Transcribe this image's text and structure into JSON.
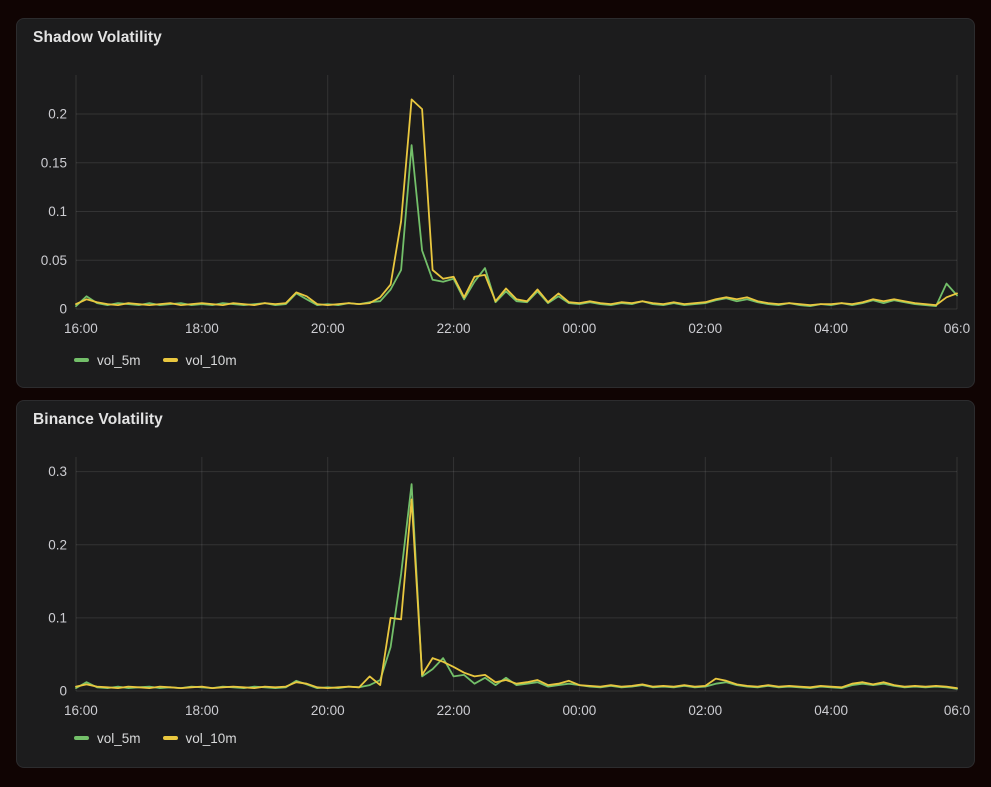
{
  "colors": {
    "page_background": "#100403",
    "panel_background": "#1c1c1d",
    "panel_border": "#2c2c2e",
    "grid": "rgba(255,255,255,0.10)",
    "title_text": "#e3e3e3",
    "axis_text": "#cdcdd2",
    "legend_text": "#d8d9da",
    "series_green": "#73bf69",
    "series_yellow": "#e9c73f"
  },
  "chart_data": [
    {
      "type": "line",
      "title": "Shadow Volatility",
      "xlabel": "",
      "ylabel": "",
      "grid": true,
      "legend_position": "bottom-left",
      "x_tick_labels": [
        "16:00",
        "18:00",
        "20:00",
        "22:00",
        "00:00",
        "02:00",
        "04:00",
        "06:0"
      ],
      "x_interval_minutes": 10,
      "x_span_minutes": 840,
      "ylim": [
        0,
        0.24
      ],
      "y_ticks": [
        {
          "v": 0,
          "label": "0"
        },
        {
          "v": 0.05,
          "label": "0.05"
        },
        {
          "v": 0.1,
          "label": "0.1"
        },
        {
          "v": 0.15,
          "label": "0.15"
        },
        {
          "v": 0.2,
          "label": "0.2"
        }
      ],
      "series": [
        {
          "name": "vol_5m",
          "color_key": "series_green",
          "values": [
            0.003,
            0.013,
            0.006,
            0.004,
            0.006,
            0.005,
            0.004,
            0.006,
            0.004,
            0.005,
            0.006,
            0.004,
            0.005,
            0.004,
            0.006,
            0.005,
            0.004,
            0.005,
            0.006,
            0.004,
            0.005,
            0.016,
            0.01,
            0.004,
            0.005,
            0.004,
            0.006,
            0.005,
            0.007,
            0.008,
            0.02,
            0.04,
            0.168,
            0.06,
            0.03,
            0.028,
            0.031,
            0.01,
            0.028,
            0.042,
            0.007,
            0.018,
            0.008,
            0.007,
            0.018,
            0.006,
            0.013,
            0.006,
            0.005,
            0.007,
            0.005,
            0.004,
            0.006,
            0.005,
            0.008,
            0.005,
            0.004,
            0.006,
            0.004,
            0.005,
            0.006,
            0.009,
            0.011,
            0.008,
            0.01,
            0.007,
            0.005,
            0.004,
            0.006,
            0.004,
            0.003,
            0.005,
            0.004,
            0.006,
            0.004,
            0.006,
            0.009,
            0.006,
            0.009,
            0.007,
            0.005,
            0.004,
            0.003,
            0.026,
            0.014
          ]
        },
        {
          "name": "vol_10m",
          "color_key": "series_yellow",
          "values": [
            0.005,
            0.01,
            0.007,
            0.005,
            0.004,
            0.006,
            0.005,
            0.004,
            0.005,
            0.006,
            0.004,
            0.005,
            0.006,
            0.005,
            0.004,
            0.006,
            0.005,
            0.004,
            0.006,
            0.005,
            0.006,
            0.017,
            0.013,
            0.005,
            0.004,
            0.005,
            0.006,
            0.005,
            0.006,
            0.012,
            0.025,
            0.09,
            0.215,
            0.205,
            0.04,
            0.031,
            0.033,
            0.012,
            0.033,
            0.035,
            0.008,
            0.021,
            0.01,
            0.008,
            0.02,
            0.007,
            0.016,
            0.007,
            0.006,
            0.008,
            0.006,
            0.005,
            0.007,
            0.006,
            0.008,
            0.006,
            0.005,
            0.007,
            0.005,
            0.006,
            0.007,
            0.01,
            0.012,
            0.01,
            0.012,
            0.008,
            0.006,
            0.005,
            0.006,
            0.005,
            0.004,
            0.005,
            0.005,
            0.006,
            0.005,
            0.007,
            0.01,
            0.008,
            0.01,
            0.008,
            0.006,
            0.005,
            0.004,
            0.012,
            0.016
          ]
        }
      ]
    },
    {
      "type": "line",
      "title": "Binance Volatility",
      "xlabel": "",
      "ylabel": "",
      "grid": true,
      "legend_position": "bottom-left",
      "x_tick_labels": [
        "16:00",
        "18:00",
        "20:00",
        "22:00",
        "00:00",
        "02:00",
        "04:00",
        "06:0"
      ],
      "x_interval_minutes": 10,
      "x_span_minutes": 840,
      "ylim": [
        0,
        0.32
      ],
      "y_ticks": [
        {
          "v": 0,
          "label": "0"
        },
        {
          "v": 0.1,
          "label": "0.1"
        },
        {
          "v": 0.2,
          "label": "0.2"
        },
        {
          "v": 0.3,
          "label": "0.3"
        }
      ],
      "series": [
        {
          "name": "vol_5m",
          "color_key": "series_green",
          "values": [
            0.004,
            0.012,
            0.005,
            0.004,
            0.006,
            0.004,
            0.005,
            0.006,
            0.004,
            0.005,
            0.004,
            0.006,
            0.005,
            0.004,
            0.006,
            0.005,
            0.004,
            0.006,
            0.005,
            0.004,
            0.005,
            0.014,
            0.009,
            0.004,
            0.005,
            0.004,
            0.006,
            0.005,
            0.008,
            0.015,
            0.06,
            0.16,
            0.283,
            0.02,
            0.03,
            0.045,
            0.02,
            0.022,
            0.01,
            0.018,
            0.008,
            0.018,
            0.008,
            0.01,
            0.012,
            0.006,
            0.008,
            0.01,
            0.008,
            0.006,
            0.005,
            0.007,
            0.005,
            0.006,
            0.008,
            0.005,
            0.006,
            0.005,
            0.007,
            0.005,
            0.006,
            0.01,
            0.012,
            0.008,
            0.006,
            0.005,
            0.007,
            0.005,
            0.006,
            0.005,
            0.004,
            0.006,
            0.005,
            0.004,
            0.008,
            0.01,
            0.008,
            0.01,
            0.007,
            0.005,
            0.006,
            0.005,
            0.006,
            0.005,
            0.003
          ]
        },
        {
          "name": "vol_10m",
          "color_key": "series_yellow",
          "values": [
            0.006,
            0.009,
            0.006,
            0.005,
            0.004,
            0.006,
            0.005,
            0.004,
            0.006,
            0.005,
            0.004,
            0.005,
            0.006,
            0.004,
            0.005,
            0.006,
            0.005,
            0.004,
            0.006,
            0.005,
            0.006,
            0.012,
            0.01,
            0.005,
            0.004,
            0.005,
            0.006,
            0.005,
            0.02,
            0.008,
            0.1,
            0.098,
            0.262,
            0.022,
            0.045,
            0.04,
            0.033,
            0.025,
            0.02,
            0.022,
            0.012,
            0.015,
            0.01,
            0.012,
            0.015,
            0.008,
            0.01,
            0.014,
            0.008,
            0.007,
            0.006,
            0.008,
            0.006,
            0.007,
            0.009,
            0.006,
            0.007,
            0.006,
            0.008,
            0.006,
            0.007,
            0.017,
            0.014,
            0.009,
            0.007,
            0.006,
            0.008,
            0.006,
            0.007,
            0.006,
            0.005,
            0.007,
            0.006,
            0.005,
            0.01,
            0.012,
            0.009,
            0.012,
            0.008,
            0.006,
            0.007,
            0.006,
            0.007,
            0.006,
            0.004
          ]
        }
      ]
    }
  ]
}
